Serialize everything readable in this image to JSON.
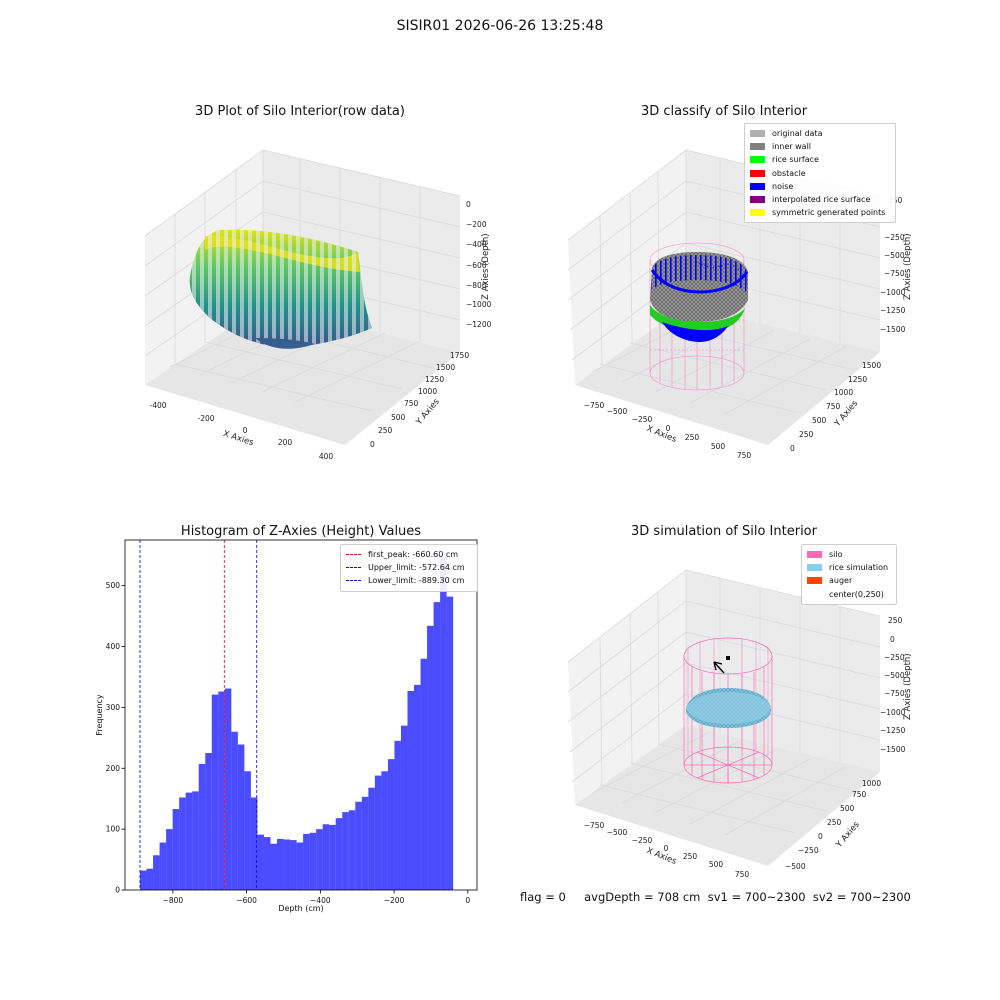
{
  "figure": {
    "suptitle": "SISIR01 2026-06-26 13:25:48",
    "footer": "flag = 0     avgDepth = 708 cm  sv1 = 700~2300  sv2 = 700~2300"
  },
  "panels": {
    "raw": {
      "title": "3D Plot of Silo Interior(row data)",
      "x_ticks": [
        "-400",
        "-200",
        "0",
        "200",
        "400"
      ],
      "y_ticks": [
        "0",
        "250",
        "500",
        "750",
        "1000",
        "1250",
        "1500",
        "1750"
      ],
      "z_ticks": [
        "0",
        "−200",
        "−400",
        "−600",
        "−800",
        "−1000",
        "−1200"
      ],
      "xlabel": "X Axies",
      "ylabel": "Y Axies",
      "zlabel": "Z Axies (Depth)"
    },
    "classify": {
      "title": "3D classify of Silo Interior",
      "x_ticks": [
        "−750",
        "−500",
        "−250",
        "0",
        "250",
        "500",
        "750"
      ],
      "y_ticks": [
        "0",
        "250",
        "500",
        "750",
        "1000",
        "1250",
        "1500"
      ],
      "z_ticks": [
        "250",
        "0",
        "−250",
        "−500",
        "−750",
        "−1000",
        "−1250",
        "−1500"
      ],
      "xlabel": "X Axies",
      "ylabel": "Y Axies",
      "zlabel": "Z Axies (Depth)",
      "legend": [
        {
          "label": "original data",
          "color": "#b0b0b0"
        },
        {
          "label": "inner wall",
          "color": "#808080"
        },
        {
          "label": "rice surface",
          "color": "#00ff00"
        },
        {
          "label": "obstacle",
          "color": "#ff0000"
        },
        {
          "label": "noise",
          "color": "#0000ff"
        },
        {
          "label": "interpolated rice surface",
          "color": "#800080"
        },
        {
          "label": "symmetric generated points",
          "color": "#ffff00"
        }
      ]
    },
    "simulation": {
      "title": "3D simulation of Silo Interior",
      "x_ticks": [
        "−750",
        "−500",
        "−250",
        "0",
        "250",
        "500",
        "750"
      ],
      "y_ticks": [
        "−500",
        "−250",
        "0",
        "250",
        "500",
        "750",
        "1000"
      ],
      "z_ticks": [
        "250",
        "0",
        "−250",
        "−500",
        "−750",
        "−1000",
        "−1250",
        "−1500"
      ],
      "xlabel": "X Axies",
      "ylabel": "Y Axies",
      "zlabel": "Z Axies (Depth)",
      "legend": [
        {
          "label": "silo",
          "color": "#ff69b4"
        },
        {
          "label": "rice simulation",
          "color": "#87ceeb"
        },
        {
          "label": "auger",
          "color": "#ff4500"
        },
        {
          "label": "center(0,250)",
          "color": "#ffffff"
        }
      ]
    }
  },
  "chart_data": [
    {
      "type": "bar",
      "title": "Histogram of Z-Axies (Height) Values",
      "xlabel": "Depth (cm)",
      "ylabel": "Frequency",
      "xlim": [
        -930,
        25
      ],
      "ylim": [
        0,
        575
      ],
      "x_ticks": [
        -800,
        -600,
        -400,
        -200,
        0
      ],
      "x_tick_labels": [
        "−800",
        "−600",
        "−400",
        "−200",
        "0"
      ],
      "y_ticks": [
        0,
        100,
        200,
        300,
        400,
        500
      ],
      "y_tick_labels": [
        "0",
        "100",
        "200",
        "300",
        "400",
        "500"
      ],
      "bin_start": -889.3,
      "bin_width": 17.7,
      "color": "#0000ff",
      "values": [
        32,
        35,
        57,
        78,
        100,
        133,
        152,
        160,
        162,
        207,
        225,
        321,
        326,
        331,
        260,
        239,
        195,
        152,
        91,
        87,
        76,
        84,
        83,
        82,
        78,
        92,
        94,
        100,
        108,
        107,
        118,
        128,
        131,
        145,
        153,
        168,
        188,
        195,
        215,
        245,
        270,
        327,
        337,
        380,
        434,
        473,
        548,
        482
      ],
      "vlines": [
        {
          "x": -660.6,
          "color": "#ff0000",
          "label": "first_peak: -660.60 cm"
        },
        {
          "x": -572.64,
          "color": "#0000ff",
          "label": "Upper_limit: -572.64 cm"
        },
        {
          "x": -889.3,
          "color": "#0000ff",
          "label": "Lower_limit: -889.30 cm"
        }
      ],
      "legend_position": "upper-right"
    }
  ]
}
